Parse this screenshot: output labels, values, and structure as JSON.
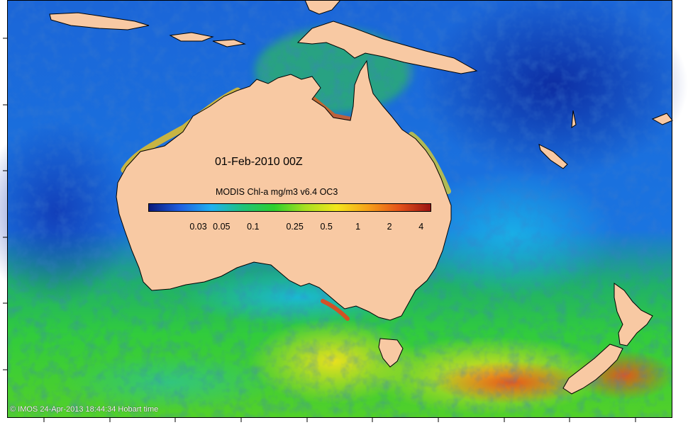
{
  "map": {
    "timestamp_label": "01-Feb-2010 00Z",
    "credit": "© IMOS 24-Apr-2013 18:44:34 Hobart time",
    "colors": {
      "land": "#f8c9a3",
      "coast": "#000000",
      "ocean_low": "#1f3fbf",
      "ocean_mid": "#21c24b",
      "ocean_high": "#f0d020",
      "bloom": "#e55010"
    },
    "icons": [
      "colorbar",
      "land-mass",
      "ocean-field"
    ]
  },
  "colorbar": {
    "title": "MODIS Chl-a mg/m3 v6.4 OC3",
    "ticks": [
      {
        "label": "0.03",
        "value": 0.03
      },
      {
        "label": "0.05",
        "value": 0.05
      },
      {
        "label": "0.1",
        "value": 0.1
      },
      {
        "label": "0.25",
        "value": 0.25
      },
      {
        "label": "0.5",
        "value": 0.5
      },
      {
        "label": "1",
        "value": 1
      },
      {
        "label": "2",
        "value": 2
      },
      {
        "label": "4",
        "value": 4
      }
    ],
    "range": [
      0.01,
      5
    ],
    "scale": "log",
    "gradient": [
      "#0a1a7a",
      "#1f5fe0",
      "#1fb0f0",
      "#21c27a",
      "#2ecf2e",
      "#a8e020",
      "#f3e61c",
      "#f7a11a",
      "#e5531a",
      "#9b1414"
    ]
  }
}
